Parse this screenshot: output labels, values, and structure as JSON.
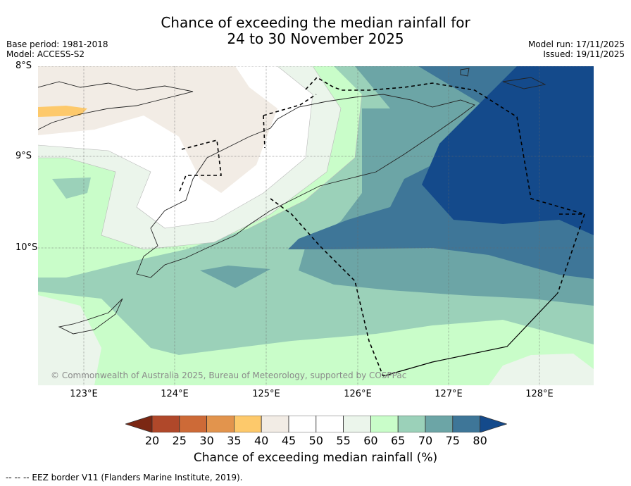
{
  "title": {
    "line1": "Chance of exceeding the median rainfall for",
    "line2": "24 to 30 November 2025"
  },
  "meta": {
    "base_period": "Base period: 1981-2018",
    "model": "Model: ACCESS-S2",
    "model_run": "Model run: 17/11/2025",
    "issued": "Issued: 19/11/2025"
  },
  "latitudes": [
    "8°S",
    "9°S",
    "10°S"
  ],
  "longitudes": [
    "123°E",
    "124°E",
    "125°E",
    "126°E",
    "127°E",
    "128°E"
  ],
  "colorbar": {
    "ticks": [
      "20",
      "25",
      "30",
      "35",
      "40",
      "45",
      "50",
      "55",
      "60",
      "65",
      "70",
      "75",
      "80"
    ],
    "label": "Chance of exceeding median rainfall (%)",
    "colors": [
      "#7b2713",
      "#b0482a",
      "#cd6a37",
      "#e2944d",
      "#fdc96b",
      "#f2ece5",
      "#ffffff",
      "#ffffff",
      "#ebf5eb",
      "#c9fdc9",
      "#9bd1b9",
      "#6ca5a6",
      "#3e7698",
      "#144a8b"
    ]
  },
  "copyright": "© Commonwealth of Australia 2025, Bureau of Meteorology, supported by COSPPac",
  "footer": "-- -- -- EEZ border V11 (Flanders Marine Institute, 2019)."
}
